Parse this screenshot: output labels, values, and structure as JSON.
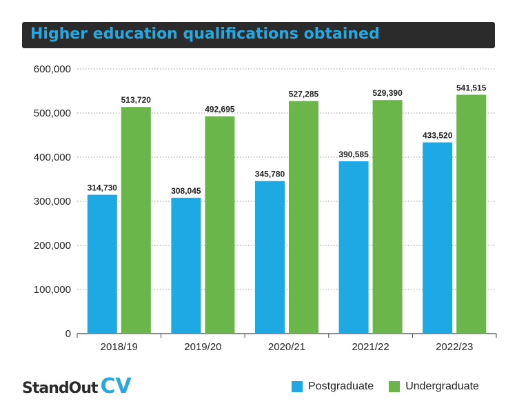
{
  "title": "Higher education qualifications obtained",
  "brand": {
    "part1": "StandOut",
    "part2": "CV"
  },
  "colors": {
    "postgraduate": "#1ea8e4",
    "undergraduate": "#6ab64b",
    "title_bg": "#2b2b2b",
    "title_text": "#29a8e0"
  },
  "chart_data": {
    "type": "bar",
    "title": "Higher education qualifications obtained",
    "categories": [
      "2018/19",
      "2019/20",
      "2020/21",
      "2021/22",
      "2022/23"
    ],
    "series": [
      {
        "name": "Postgraduate",
        "values": [
          314730,
          308045,
          345780,
          390585,
          433520
        ],
        "labels": [
          "314,730",
          "308,045",
          "345,780",
          "390,585",
          "433,520"
        ]
      },
      {
        "name": "Undergraduate",
        "values": [
          513720,
          492695,
          527285,
          529390,
          541515
        ],
        "labels": [
          "513,720",
          "492,695",
          "527,285",
          "529,390",
          "541,515"
        ]
      }
    ],
    "yticks": [
      0,
      100000,
      200000,
      300000,
      400000,
      500000,
      600000
    ],
    "ytick_labels": [
      "0",
      "100,000",
      "200,000",
      "300,000",
      "400,000",
      "500,000",
      "600,000"
    ],
    "ylim": [
      0,
      600000
    ],
    "xlabel": "",
    "ylabel": "",
    "grid": true,
    "legend_position": "bottom-right"
  }
}
